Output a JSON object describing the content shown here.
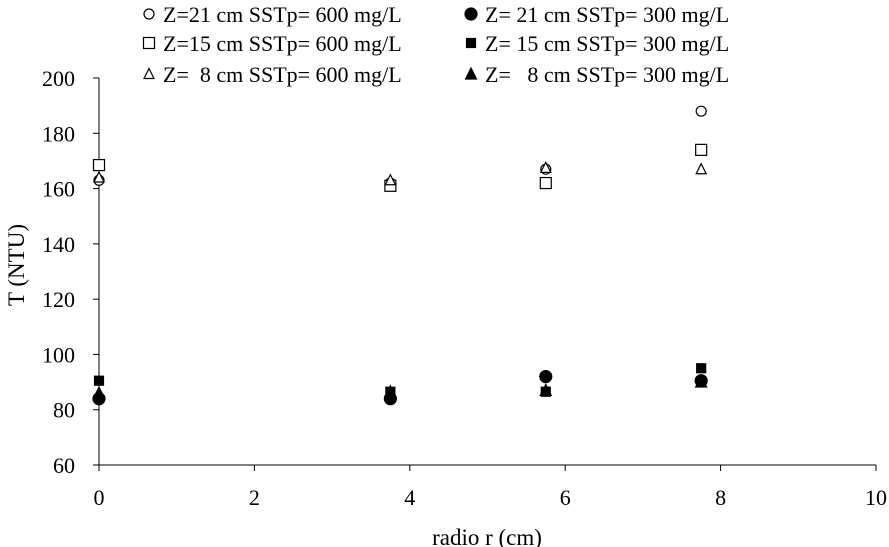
{
  "chart_data": {
    "type": "scatter",
    "title": "",
    "xlabel": "radio  r (cm)",
    "ylabel": "T (NTU)",
    "xlim": [
      0,
      10
    ],
    "ylim": [
      60,
      200
    ],
    "xticks": [
      0,
      2,
      4,
      6,
      8,
      10
    ],
    "yticks": [
      60,
      80,
      100,
      120,
      140,
      160,
      180,
      200
    ],
    "grid": false,
    "legend_position": "top",
    "series": [
      {
        "name": "Z=21 cm SSTp= 600 mg/L",
        "marker": "circle-open",
        "x": [
          0,
          3.75,
          5.75,
          7.75
        ],
        "y": [
          163,
          162,
          167,
          188
        ]
      },
      {
        "name": "Z= 21 cm SSTp= 300 mg/L",
        "marker": "circle-filled",
        "x": [
          0,
          3.75,
          5.75,
          7.75
        ],
        "y": [
          84,
          84,
          92,
          90.5
        ]
      },
      {
        "name": "Z=15 cm SSTp= 600 mg/L",
        "marker": "square-open",
        "x": [
          0,
          3.75,
          5.75,
          7.75
        ],
        "y": [
          168.5,
          161,
          162,
          174
        ]
      },
      {
        "name": "Z= 15 cm SSTp= 300 mg/L",
        "marker": "square-filled",
        "x": [
          0,
          3.75,
          5.75,
          7.75
        ],
        "y": [
          90.5,
          86.5,
          86.5,
          95
        ]
      },
      {
        "name": "Z=  8 cm SSTp= 600 mg/L",
        "marker": "triangle-open",
        "x": [
          0,
          3.75,
          5.75,
          7.75
        ],
        "y": [
          164,
          163,
          167.5,
          167
        ]
      },
      {
        "name": "Z=   8 cm SSTp= 300 mg/L",
        "marker": "triangle-filled",
        "x": [
          0,
          3.75,
          5.75,
          7.75
        ],
        "y": [
          86,
          86.5,
          87,
          90
        ]
      }
    ]
  }
}
